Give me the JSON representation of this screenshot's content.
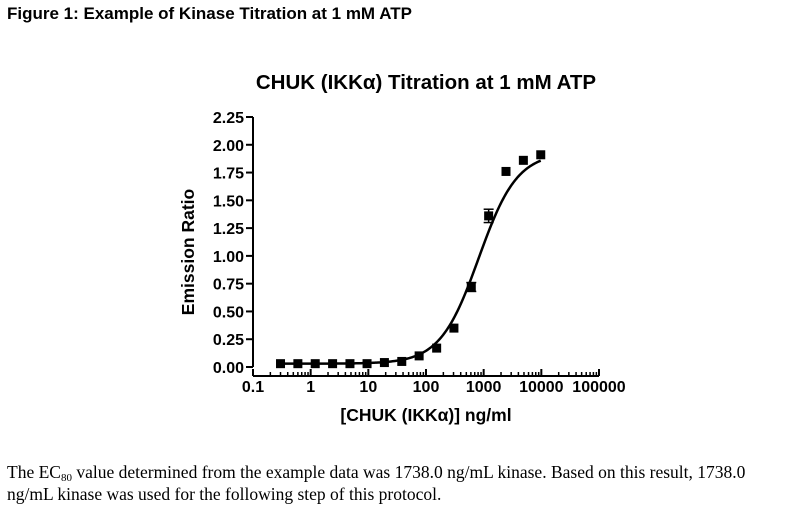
{
  "figure": {
    "heading": "Figure 1: Example of Kinase Titration at 1 mM ATP"
  },
  "chart_data": {
    "type": "scatter",
    "title": "CHUK (IKKα) Titration at 1 mM ATP",
    "xlabel": "[CHUK (IKKα)] ng/ml",
    "ylabel": "Emission Ratio",
    "x_scale": "log",
    "xlim": [
      0.1,
      100000
    ],
    "ylim": [
      0,
      2.25
    ],
    "x_ticks": [
      0.1,
      1,
      10,
      100,
      1000,
      10000,
      100000
    ],
    "x_tick_labels": [
      "0.1",
      "1",
      "10",
      "100",
      "1000",
      "10000",
      "100000"
    ],
    "y_ticks": [
      0,
      0.25,
      0.5,
      0.75,
      1,
      1.25,
      1.5,
      1.75,
      2,
      2.25
    ],
    "y_tick_labels": [
      "0.00",
      "0.25",
      "0.50",
      "0.75",
      "1.00",
      "1.25",
      "1.50",
      "1.75",
      "2.00",
      "2.25"
    ],
    "grid": false,
    "legend": "none",
    "series": [
      {
        "marker": "square",
        "color": "#000000",
        "x": [
          0.3,
          0.6,
          1.2,
          2.4,
          4.8,
          9.5,
          19,
          38,
          76,
          153,
          305,
          610,
          1220,
          2440,
          4880,
          9770
        ],
        "y": [
          0.03,
          0.03,
          0.03,
          0.03,
          0.03,
          0.03,
          0.04,
          0.05,
          0.1,
          0.17,
          0.35,
          0.72,
          1.36,
          1.76,
          1.86,
          1.91
        ],
        "error": [
          0,
          0,
          0,
          0,
          0,
          0,
          0,
          0,
          0,
          0,
          0,
          0.04,
          0.06,
          0,
          0,
          0
        ]
      }
    ],
    "fit": {
      "type": "sigmoidal-dose-response",
      "bottom": 0.03,
      "top": 1.93,
      "ec50": 820,
      "hill": 1.3
    }
  },
  "caption": {
    "part1": "The EC",
    "subscript": "80",
    "part2": " value determined from the example data was 1738.0 ng/mL kinase.  Based on this result, 1738.0 ng/mL kinase was used for the following step of this protocol."
  }
}
